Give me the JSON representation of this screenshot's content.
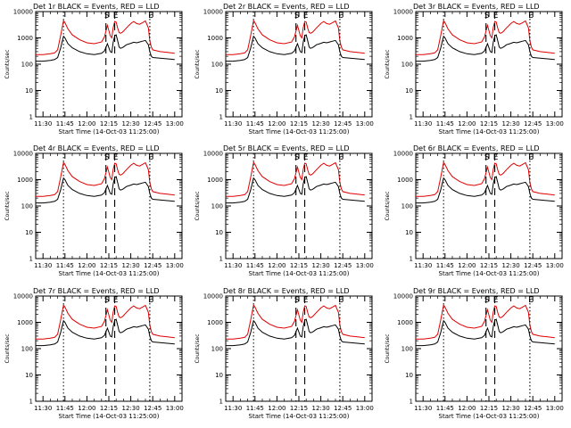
{
  "chart_data": [
    {
      "type": "line",
      "title": "Det 1r BLACK = Events, RED = LLD"
    },
    {
      "type": "line",
      "title": "Det 2r BLACK = Events, RED = LLD"
    },
    {
      "type": "line",
      "title": "Det 3r BLACK = Events, RED = LLD"
    },
    {
      "type": "line",
      "title": "Det 4r BLACK = Events, RED = LLD"
    },
    {
      "type": "line",
      "title": "Det 5r BLACK = Events, RED = LLD"
    },
    {
      "type": "line",
      "title": "Det 6r BLACK = Events, RED = LLD"
    },
    {
      "type": "line",
      "title": "Det 7r BLACK = Events, RED = LLD"
    },
    {
      "type": "line",
      "title": "Det 8r BLACK = Events, RED = LLD"
    },
    {
      "type": "line",
      "title": "Det 9r BLACK = Events, RED = LLD"
    }
  ],
  "shared": {
    "xlabel": "Start Time (14-Oct-03 11:25:00)",
    "ylabel": "Counts/sec",
    "x_ticks": [
      "11:30",
      "11:45",
      "12:00",
      "12:15",
      "12:30",
      "12:45",
      "13:00"
    ],
    "y_ticks": [
      "1",
      "10",
      "100",
      "1000",
      "10000"
    ],
    "ylim": [
      1,
      10000
    ],
    "scale": "log",
    "markers": [
      "S",
      "E",
      "E"
    ],
    "series": [
      {
        "name": "Events",
        "color": "#000000",
        "x": [
          "11:25",
          "11:30",
          "11:35",
          "11:38",
          "11:40",
          "11:42",
          "11:44",
          "11:45",
          "11:47",
          "11:50",
          "11:55",
          "12:00",
          "12:05",
          "12:10",
          "12:12",
          "12:14",
          "12:16",
          "12:17",
          "12:18",
          "12:19",
          "12:20",
          "12:21",
          "12:22",
          "12:23",
          "12:24",
          "12:25",
          "12:27",
          "12:30",
          "12:32",
          "12:34",
          "12:36",
          "12:38",
          "12:40",
          "12:42",
          "12:43",
          "12:44",
          "12:45",
          "12:50",
          "12:55",
          "13:00"
        ],
        "y": [
          130,
          130,
          140,
          150,
          180,
          400,
          1150,
          1000,
          600,
          420,
          300,
          250,
          230,
          260,
          320,
          600,
          300,
          280,
          700,
          1200,
          1300,
          800,
          450,
          400,
          420,
          450,
          550,
          620,
          680,
          650,
          700,
          750,
          800,
          550,
          300,
          200,
          180,
          170,
          160,
          150
        ]
      },
      {
        "name": "LLD",
        "color": "#e00000",
        "x": [
          "11:25",
          "11:30",
          "11:35",
          "11:38",
          "11:40",
          "11:42",
          "11:44",
          "11:45",
          "11:47",
          "11:50",
          "11:55",
          "12:00",
          "12:05",
          "12:10",
          "12:12",
          "12:14",
          "12:16",
          "12:17",
          "12:18",
          "12:19",
          "12:20",
          "12:21",
          "12:22",
          "12:23",
          "12:24",
          "12:25",
          "12:27",
          "12:30",
          "12:32",
          "12:34",
          "12:36",
          "12:38",
          "12:40",
          "12:42",
          "12:43",
          "12:44",
          "12:45",
          "12:50",
          "12:55",
          "13:00"
        ],
        "y": [
          230,
          230,
          250,
          270,
          350,
          1200,
          4500,
          3800,
          2200,
          1300,
          850,
          650,
          600,
          700,
          1100,
          3000,
          1200,
          1000,
          2500,
          4200,
          4000,
          2400,
          1600,
          1500,
          1600,
          1800,
          2400,
          3500,
          4200,
          3500,
          3300,
          3800,
          4400,
          2400,
          800,
          450,
          350,
          300,
          280,
          260
        ]
      }
    ]
  }
}
